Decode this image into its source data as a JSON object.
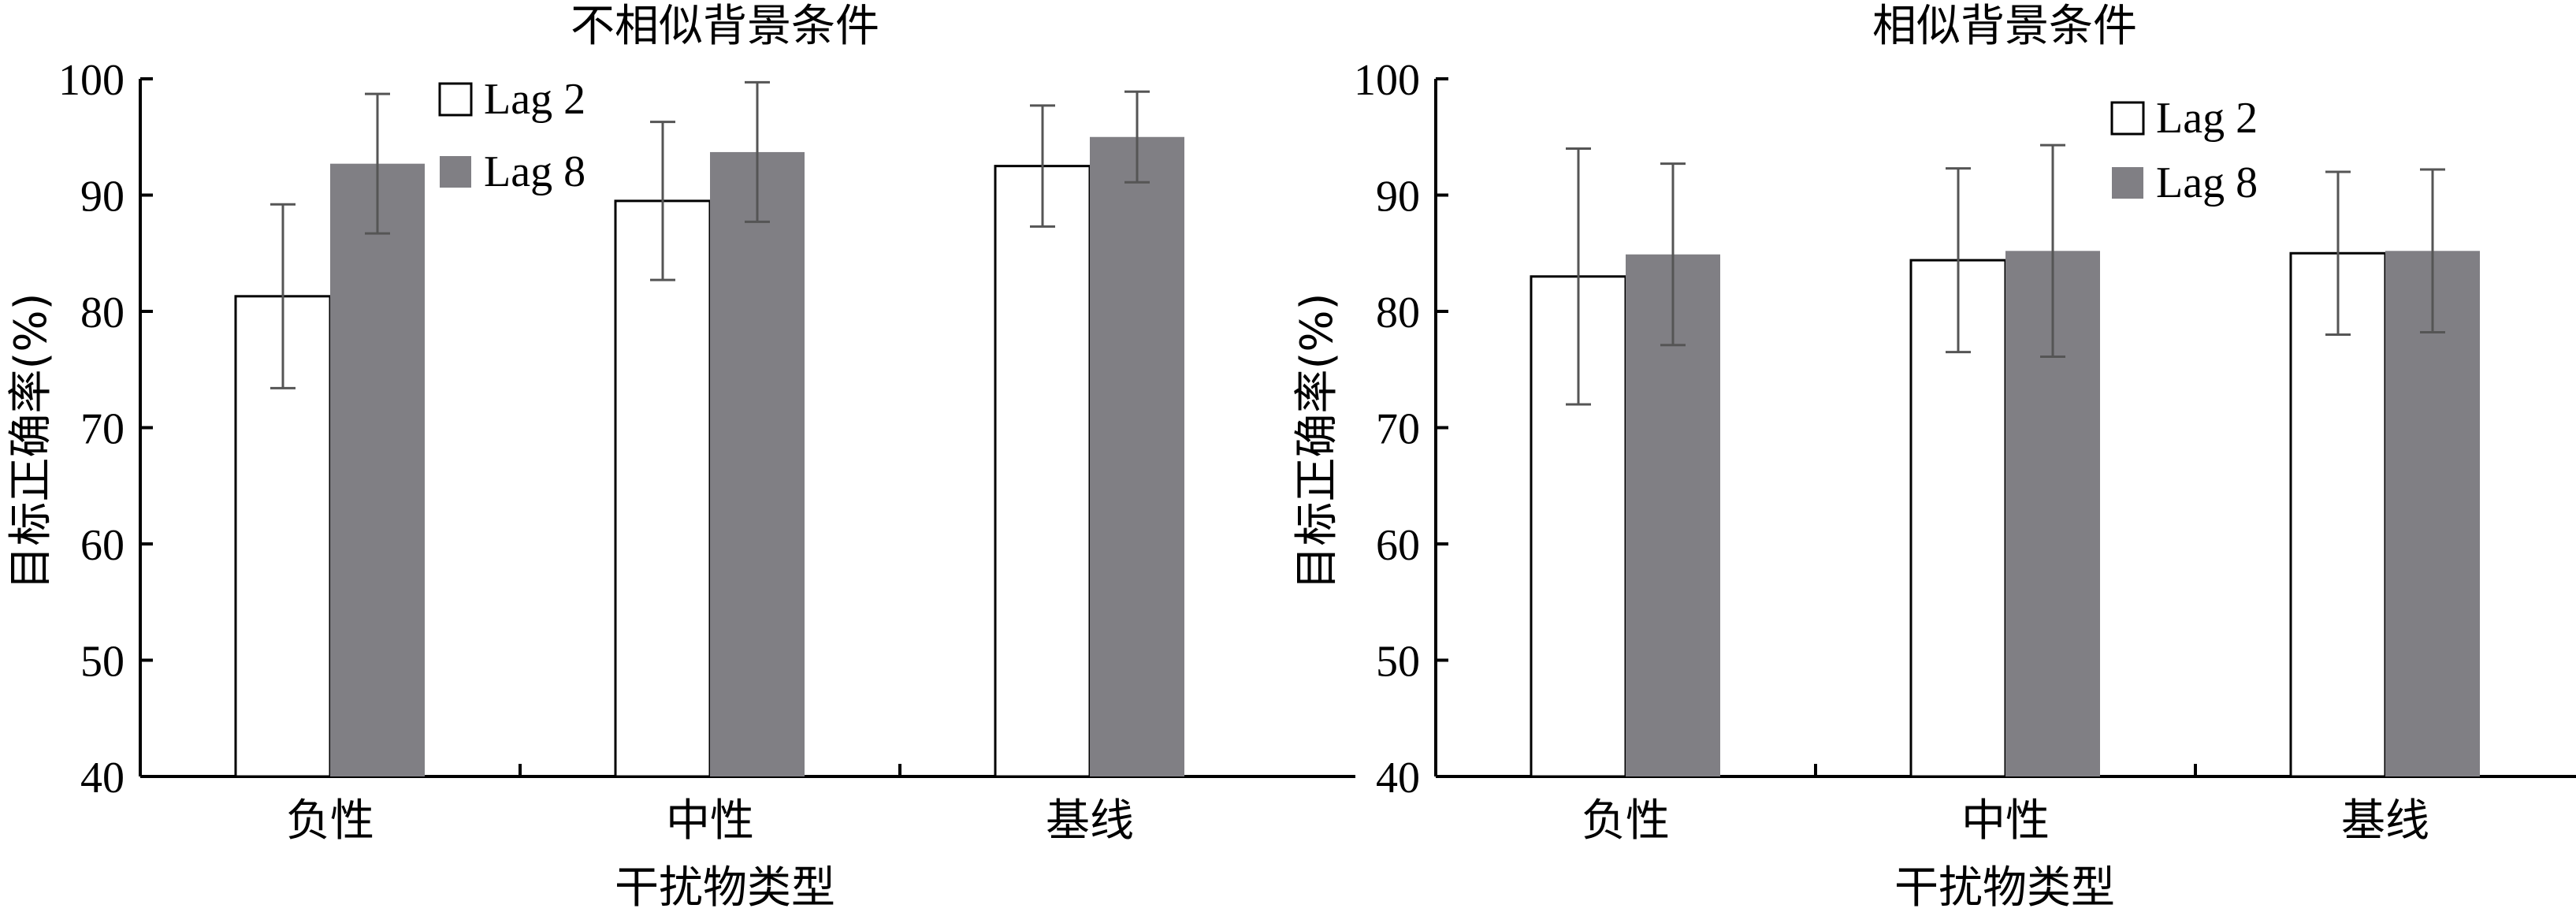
{
  "chart_data": [
    {
      "type": "bar",
      "title": "不相似背景条件",
      "xlabel": "干扰物类型",
      "ylabel": "目标正确率(%)",
      "ylim": [
        40,
        100
      ],
      "yticks": [
        "40",
        "50",
        "60",
        "70",
        "80",
        "90",
        "100"
      ],
      "categories": [
        "负性",
        "中性",
        "基线"
      ],
      "series": [
        {
          "name": "Lag 2",
          "values": [
            81.3,
            89.5,
            92.5
          ],
          "errors": [
            7.9,
            6.8,
            5.2
          ],
          "color": "#ffffff"
        },
        {
          "name": "Lag 8",
          "values": [
            92.7,
            93.7,
            95.0
          ],
          "errors": [
            6.0,
            6.0,
            3.9
          ],
          "color": "#807f84"
        }
      ],
      "legend_position": "top-left",
      "grid": false
    },
    {
      "type": "bar",
      "title": "相似背景条件",
      "xlabel": "干扰物类型",
      "ylabel": "目标正确率(%)",
      "ylim": [
        40,
        100
      ],
      "yticks": [
        "40",
        "50",
        "60",
        "70",
        "80",
        "90",
        "100"
      ],
      "categories": [
        "负性",
        "中性",
        "基线"
      ],
      "series": [
        {
          "name": "Lag 2",
          "values": [
            83.0,
            84.4,
            85.0
          ],
          "errors": [
            11.0,
            7.9,
            7.0
          ],
          "color": "#ffffff"
        },
        {
          "name": "Lag 8",
          "values": [
            84.9,
            85.2,
            85.2
          ],
          "errors": [
            7.8,
            9.1,
            7.0
          ],
          "color": "#807f84"
        }
      ],
      "legend_position": "top-right",
      "grid": false
    }
  ]
}
